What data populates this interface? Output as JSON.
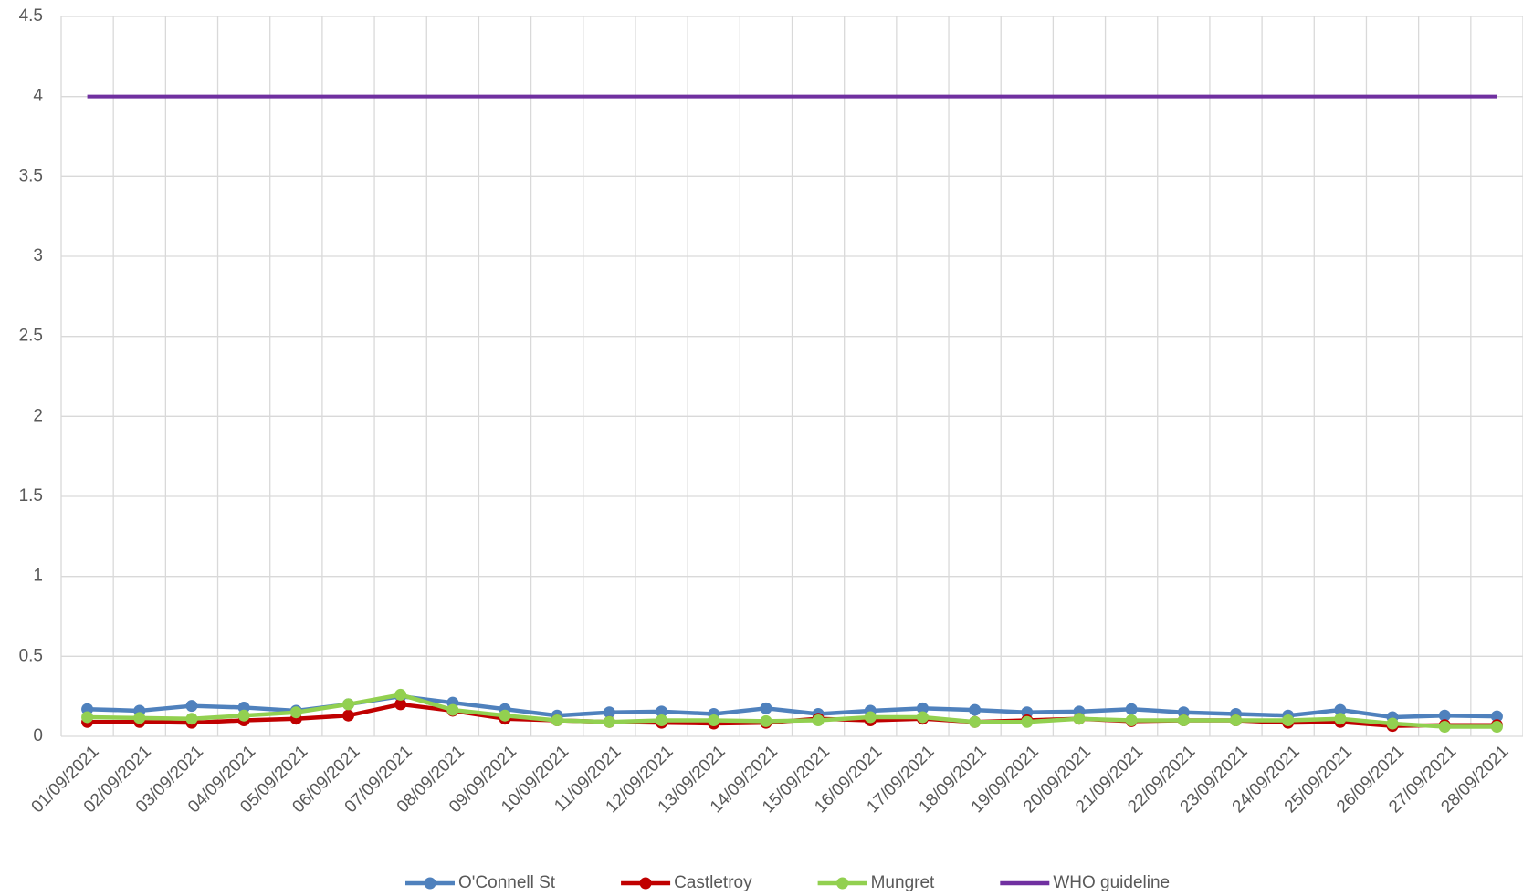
{
  "chart_data": {
    "type": "line",
    "categories": [
      "01/09/2021",
      "02/09/2021",
      "03/09/2021",
      "04/09/2021",
      "05/09/2021",
      "06/09/2021",
      "07/09/2021",
      "08/09/2021",
      "09/09/2021",
      "10/09/2021",
      "11/09/2021",
      "12/09/2021",
      "13/09/2021",
      "14/09/2021",
      "15/09/2021",
      "16/09/2021",
      "17/09/2021",
      "18/09/2021",
      "19/09/2021",
      "20/09/2021",
      "21/09/2021",
      "22/09/2021",
      "23/09/2021",
      "24/09/2021",
      "25/09/2021",
      "26/09/2021",
      "27/09/2021",
      "28/09/2021"
    ],
    "series": [
      {
        "name": "O'Connell St",
        "color": "#4f81bd",
        "markers": true,
        "values": [
          0.17,
          0.16,
          0.19,
          0.18,
          0.16,
          0.2,
          0.25,
          0.21,
          0.17,
          0.13,
          0.15,
          0.155,
          0.14,
          0.175,
          0.14,
          0.16,
          0.175,
          0.165,
          0.15,
          0.155,
          0.17,
          0.15,
          0.14,
          0.13,
          0.165,
          0.12,
          0.13,
          0.125
        ]
      },
      {
        "name": "Castletroy",
        "color": "#c00000",
        "markers": true,
        "values": [
          0.09,
          0.09,
          0.085,
          0.1,
          0.11,
          0.13,
          0.2,
          0.16,
          0.11,
          0.1,
          0.09,
          0.085,
          0.08,
          0.085,
          0.11,
          0.1,
          0.11,
          0.09,
          0.1,
          0.11,
          0.095,
          0.1,
          0.1,
          0.085,
          0.09,
          0.065,
          0.07,
          0.07
        ]
      },
      {
        "name": "Mungret",
        "color": "#92d050",
        "markers": true,
        "values": [
          0.12,
          0.115,
          0.11,
          0.13,
          0.15,
          0.2,
          0.26,
          0.165,
          0.13,
          0.1,
          0.09,
          0.1,
          0.1,
          0.095,
          0.1,
          0.12,
          0.12,
          0.09,
          0.09,
          0.11,
          0.1,
          0.1,
          0.1,
          0.1,
          0.11,
          0.08,
          0.06,
          0.06
        ]
      },
      {
        "name": "WHO guideline",
        "color": "#7030a0",
        "markers": false,
        "values": [
          4,
          4,
          4,
          4,
          4,
          4,
          4,
          4,
          4,
          4,
          4,
          4,
          4,
          4,
          4,
          4,
          4,
          4,
          4,
          4,
          4,
          4,
          4,
          4,
          4,
          4,
          4,
          4
        ]
      }
    ],
    "ylim": [
      0,
      4.5
    ],
    "yticks": [
      0,
      0.5,
      1,
      1.5,
      2,
      2.5,
      3,
      3.5,
      4,
      4.5
    ],
    "grid": true,
    "legend": "bottom"
  }
}
